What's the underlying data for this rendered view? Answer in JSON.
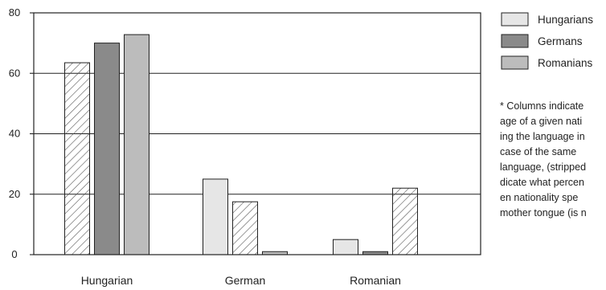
{
  "chart_data": {
    "type": "bar",
    "categories": [
      "Hungarian",
      "German",
      "Romanian"
    ],
    "series": [
      {
        "name": "Hungarians",
        "values": [
          63.5,
          25,
          5
        ],
        "color": "#e6e6e6"
      },
      {
        "name": "Germans",
        "values": [
          70,
          17.5,
          1
        ],
        "color": "#8a8a8a"
      },
      {
        "name": "Romanians",
        "values": [
          72.8,
          1,
          22
        ],
        "color": "#bcbcbc"
      }
    ],
    "hatched": [
      [
        true,
        false,
        false
      ],
      [
        false,
        true,
        false
      ],
      [
        false,
        false,
        true
      ]
    ],
    "yticks": [
      0,
      20,
      40,
      60,
      80
    ],
    "ylim": [
      0,
      80
    ],
    "grid": true,
    "legend_position": "right",
    "footnote": "* Columns indicate\nage of a given nati\ning the language in\ncase of the same\nlanguage, (stripped\ndicate what percen\nen nationality spe\nmother tongue (is n"
  }
}
